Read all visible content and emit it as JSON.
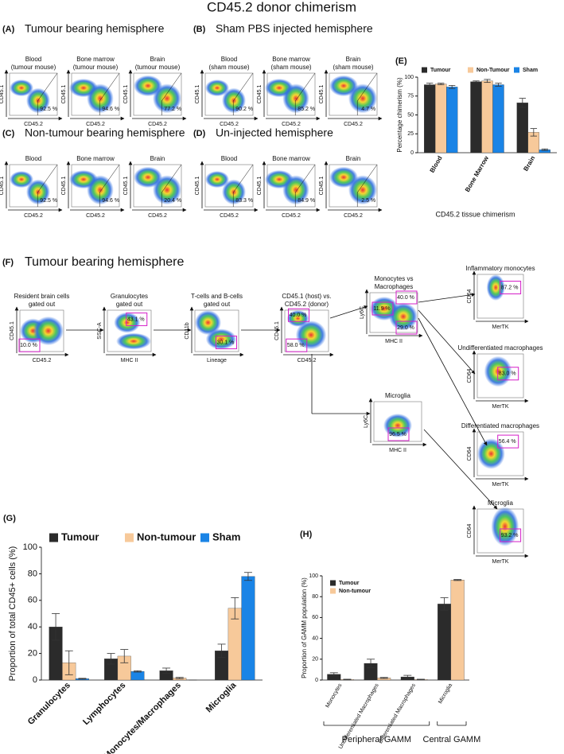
{
  "title": "CD45.2 donor chimerism",
  "flow_rows": [
    {
      "label": "(A)",
      "title": "Tumour bearing hemisphere",
      "plots": [
        {
          "title_lines": [
            "Blood",
            "(tumour mouse)"
          ],
          "x_axis": "CD45.2",
          "y_axis": "CD45.1",
          "gates": [
            "92.5 %"
          ]
        },
        {
          "title_lines": [
            "Bone marrow",
            "(tumour mouse)"
          ],
          "x_axis": "CD45.2",
          "y_axis": "CD45.1",
          "gates": [
            "94.6 %"
          ]
        },
        {
          "title_lines": [
            "Brain",
            "(tumour mouse)"
          ],
          "x_axis": "CD45.2",
          "y_axis": "CD45.1",
          "gates": [
            "77.2 %"
          ]
        }
      ]
    },
    {
      "label": "(B)",
      "title": "Sham PBS injected hemisphere",
      "plots": [
        {
          "title_lines": [
            "Blood",
            "(sham mouse)"
          ],
          "x_axis": "CD45.2",
          "y_axis": "CD45.1",
          "gates": [
            "90.2 %"
          ]
        },
        {
          "title_lines": [
            "Bone marrow",
            "(sham mouse)"
          ],
          "x_axis": "CD45.2",
          "y_axis": "CD45.1",
          "gates": [
            "85.2 %"
          ]
        },
        {
          "title_lines": [
            "Brain",
            "(sham mouse)"
          ],
          "x_axis": "CD45.2",
          "y_axis": "CD45.1",
          "gates": [
            "4.7 %"
          ]
        }
      ]
    },
    {
      "label": "(C)",
      "title": "Non-tumour bearing hemisphere",
      "plots": [
        {
          "title_lines": [
            "Blood"
          ],
          "x_axis": "CD45.2",
          "y_axis": "CD45.1",
          "gates": [
            "92.5 %"
          ]
        },
        {
          "title_lines": [
            "Bone marrow"
          ],
          "x_axis": "CD45.2",
          "y_axis": "CD45.1",
          "gates": [
            "94.6 %"
          ]
        },
        {
          "title_lines": [
            "Brain"
          ],
          "x_axis": "CD45.2",
          "y_axis": "CD45.1",
          "gates": [
            "20.4 %"
          ]
        }
      ]
    },
    {
      "label": "(D)",
      "title": "Un-injected hemisphere",
      "plots": [
        {
          "title_lines": [
            "Blood"
          ],
          "x_axis": "CD45.2",
          "y_axis": "CD45.1",
          "gates": [
            "83.3 %"
          ]
        },
        {
          "title_lines": [
            "Bone marrow"
          ],
          "x_axis": "CD45.2",
          "y_axis": "CD45.1",
          "gates": [
            "84.9 %"
          ]
        },
        {
          "title_lines": [
            "Brain"
          ],
          "x_axis": "CD45.2",
          "y_axis": "CD45.1",
          "gates": [
            "2.5 %"
          ]
        }
      ]
    }
  ],
  "panel_f": {
    "label": "(F)",
    "title": "Tumour bearing hemisphere",
    "plots": [
      {
        "title_lines": [
          "Resident brain cells",
          "gated out"
        ],
        "x_axis": "CD45.2",
        "y_axis": "CD45.1",
        "gates": [
          "10.0 %"
        ]
      },
      {
        "title_lines": [
          "Granulocytes",
          "gated out"
        ],
        "x_axis": "MHC II",
        "y_axis": "SSC-A",
        "gates": [
          "43.1 %"
        ]
      },
      {
        "title_lines": [
          "T-cells and B-cells",
          "gated out"
        ],
        "x_axis": "Lineage",
        "y_axis": "CD11b",
        "gates": [
          "30.1 %"
        ]
      },
      {
        "title_lines": [
          "CD45.1 (host) vs.",
          "CD45.2 (donor)"
        ],
        "x_axis": "CD45.2",
        "y_axis": "CD45.1",
        "gates": [
          "40.0 %",
          "58.0 %"
        ]
      },
      {
        "title_lines": [
          "Monocytes vs",
          "Macrophages"
        ],
        "x_axis": "MHC II",
        "y_axis": "Ly6C",
        "gates": [
          "40.0 %",
          "11.9 %",
          "29.0 %"
        ]
      },
      {
        "title_lines": [
          "Microglia"
        ],
        "x_axis": "MHC II",
        "y_axis": "Ly6C",
        "gates": [
          "96.5 %"
        ]
      },
      {
        "title_lines": [
          "Inflammatory monocytes"
        ],
        "x_axis": "MerTK",
        "y_axis": "CD64",
        "gates": [
          "87.2 %"
        ]
      },
      {
        "title_lines": [
          "Undifferentiated macrophages"
        ],
        "x_axis": "MerTK",
        "y_axis": "CD64",
        "gates": [
          "83.0 %"
        ]
      },
      {
        "title_lines": [
          "Differentiated macrophages"
        ],
        "x_axis": "MerTK",
        "y_axis": "CD64",
        "gates": [
          "56.4 %"
        ]
      },
      {
        "title_lines": [
          "Microglia"
        ],
        "x_axis": "MerTK",
        "y_axis": "CD64",
        "gates": [
          "93.2 %"
        ]
      }
    ]
  },
  "chart_data": [
    {
      "type": "bar",
      "label": "(E)",
      "y_label": "Percentage chimerism (%)",
      "x_label": "CD45.2 tissue chimerism",
      "legend": "top",
      "categories": [
        "Blood",
        "Bone Marrow",
        "Brain"
      ],
      "series": [
        {
          "name": "Tumour",
          "color": "#2b2b2b",
          "values": [
            90,
            94,
            66
          ],
          "errors": [
            2,
            1,
            6
          ]
        },
        {
          "name": "Non-Tumour",
          "color": "#f7c99a",
          "values": [
            91,
            95,
            27
          ],
          "errors": [
            1,
            2,
            5
          ]
        },
        {
          "name": "Sham",
          "color": "#1a84e6",
          "values": [
            87,
            90,
            4
          ],
          "errors": [
            2,
            2,
            1
          ]
        }
      ],
      "ylim": [
        0,
        100
      ],
      "yticks": [
        0,
        25,
        50,
        75,
        100
      ]
    },
    {
      "type": "bar",
      "label": "(G)",
      "y_label": "Proportion of total CD45+ cells (%)",
      "legend": "top",
      "categories": [
        "Granulocytes",
        "Lymphocytes",
        "Monocytes/Macrophages",
        "Microglia"
      ],
      "series": [
        {
          "name": "Tumour",
          "color": "#2b2b2b",
          "values": [
            40,
            16,
            7,
            22
          ],
          "errors": [
            10,
            4,
            2,
            5
          ]
        },
        {
          "name": "Non-tumour",
          "color": "#f7c99a",
          "values": [
            13,
            18,
            1.5,
            54
          ],
          "errors": [
            9,
            5,
            0.5,
            8
          ]
        },
        {
          "name": "Sham",
          "color": "#1a84e6",
          "values": [
            1,
            6.5,
            0,
            78
          ],
          "errors": [
            0.3,
            0.5,
            0,
            3
          ]
        }
      ],
      "ylim": [
        0,
        100
      ],
      "yticks": [
        0,
        20,
        40,
        60,
        80,
        100
      ]
    },
    {
      "type": "bar",
      "label": "(H)",
      "y_label": "Proportion of GAMM population (%)",
      "legend": "top-left",
      "categories": [
        "Monocytes",
        "Undifferentiated Macrophages",
        "Differentiated Macrophages",
        "Microglia"
      ],
      "group_labels": [
        "Peripheral GAMM",
        "Central GAMM"
      ],
      "series": [
        {
          "name": "Tumour",
          "color": "#2b2b2b",
          "values": [
            5.5,
            16,
            3,
            73
          ],
          "errors": [
            1.5,
            4,
            1.5,
            6
          ]
        },
        {
          "name": "Non-tumour",
          "color": "#f7c99a",
          "values": [
            0.5,
            2,
            0.5,
            96
          ],
          "errors": [
            0.3,
            0.5,
            0.3,
            0.5
          ]
        }
      ],
      "ylim": [
        0,
        100
      ],
      "yticks": [
        0,
        20,
        40,
        60,
        80,
        100
      ]
    }
  ]
}
